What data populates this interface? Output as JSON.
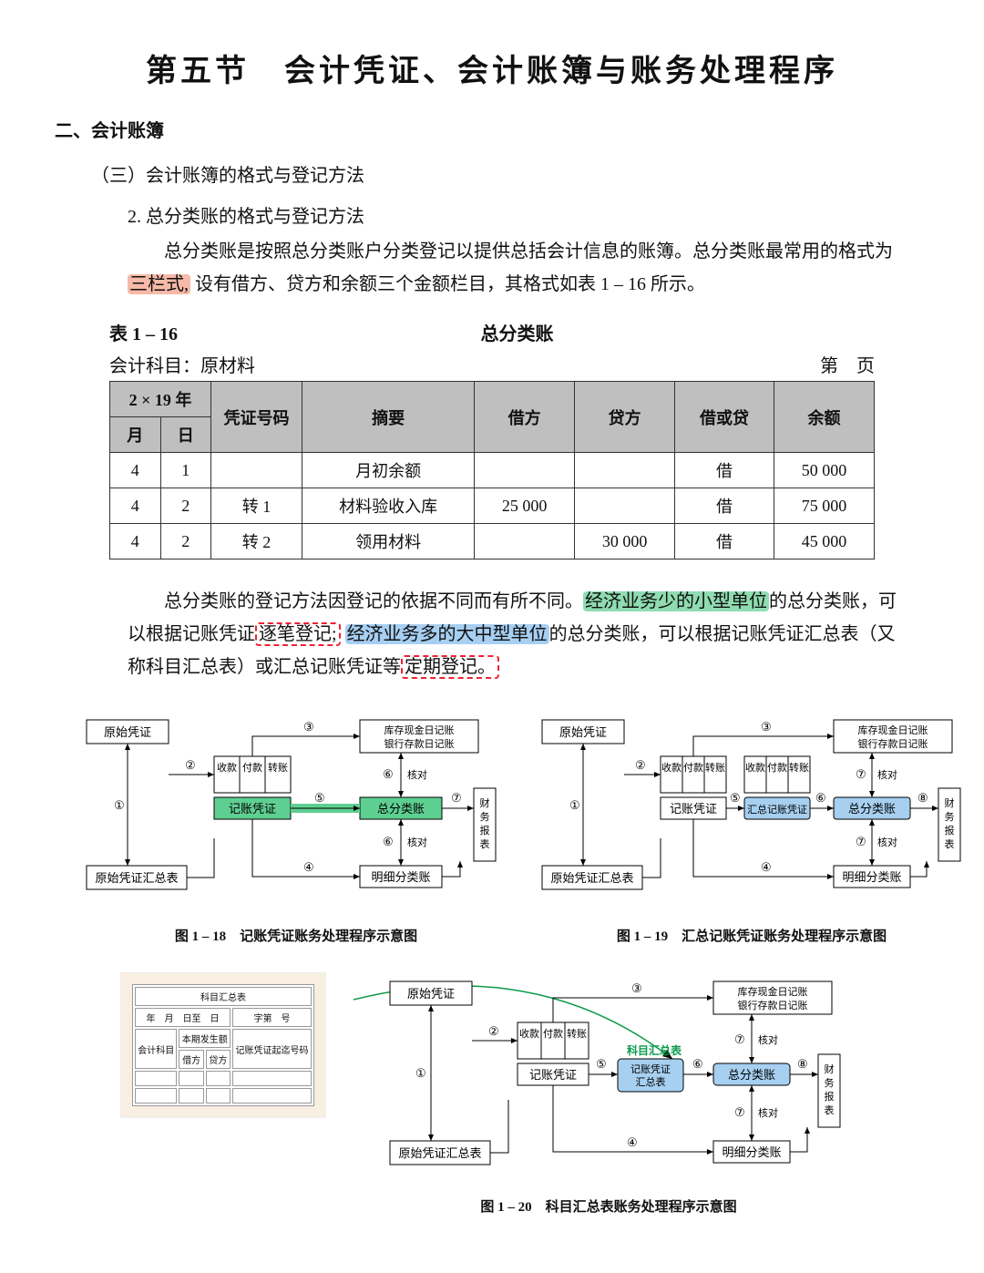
{
  "title": "第五节　会计凭证、会计账簿与账务处理程序",
  "section2": "二、会计账簿",
  "section3": "（三）会计账簿的格式与登记方法",
  "section4": "2. 总分类账的格式与登记方法",
  "para1": {
    "pre": "总分类账是按照总分类账户分类登记以提供总括会计信息的账簿。总分类账最常用的格式为",
    "hl": "三栏式,",
    "post": " 设有借方、贷方和余额三个金额栏目，其格式如表 1 – 16 所示。"
  },
  "tableCaption": {
    "left": "表 1 – 16",
    "center": "总分类账"
  },
  "subjectLine": {
    "left": "会计科目：原材料",
    "right": "第　页"
  },
  "ledger": {
    "yearHeader": "2 × 19 年",
    "cols": {
      "month": "月",
      "day": "日",
      "voucher": "凭证号码",
      "summary": "摘要",
      "debit": "借方",
      "credit": "贷方",
      "dc": "借或贷",
      "balance": "余额"
    },
    "rows": [
      {
        "m": "4",
        "d": "1",
        "v": "",
        "s": "月初余额",
        "db": "",
        "cr": "",
        "dc": "借",
        "bal": "50 000"
      },
      {
        "m": "4",
        "d": "2",
        "v": "转 1",
        "s": "材料验收入库",
        "db": "25 000",
        "cr": "",
        "dc": "借",
        "bal": "75 000"
      },
      {
        "m": "4",
        "d": "2",
        "v": "转 2",
        "s": "领用材料",
        "db": "",
        "cr": "30 000",
        "dc": "借",
        "bal": "45 000"
      }
    ]
  },
  "para2": {
    "a": "总分类账的登记方法因登记的依据不同而有所不同。",
    "b": "经济业务少的小型单位",
    "c": "的总分类账，可以根据记账凭证",
    "d": "逐笔登记;",
    "e": "经济业务多的大中型单位",
    "f": "的总分类账，可以根据记账凭证汇总表（又称科目汇总表）或汇总记账凭证等",
    "g": "定期登记。"
  },
  "diagram": {
    "nodes": {
      "orig": "原始凭证",
      "origSum": "原始凭证汇总表",
      "recv": "收款",
      "pay": "付款",
      "tran": "转账",
      "voucher": "记账凭证",
      "voucherSum": "记账凭证\n汇总表",
      "sumVoucher": "汇总记账\n凭证",
      "sumVoucherLine": "汇总记账凭证",
      "cash": "库存现金日记账\n银行存款日记账",
      "general": "总分类账",
      "detail": "明细分类账",
      "report": "财务报表",
      "verify": "核对",
      "handNote": "科目汇总表"
    },
    "circled": [
      "①",
      "②",
      "③",
      "④",
      "⑤",
      "⑥",
      "⑦",
      "⑧"
    ],
    "captions": {
      "d1": "图 1 – 18　记账凭证账务处理程序示意图",
      "d2": "图 1 – 19　汇总记账凭证账务处理程序示意图",
      "d3": "图 1 – 20　科目汇总表账务处理程序示意图"
    }
  },
  "smallTable": {
    "title": "科目汇总表",
    "line2a": "年　月　日至　日",
    "line2b": "字第　号",
    "subject": "会计科目",
    "amtGroup": "本期发生额",
    "debit": "借方",
    "credit": "贷方",
    "vno": "记账凭证起迄号码"
  },
  "style": {
    "bg": "#ffffff",
    "text": "#111111",
    "tableHeaderBg": "#bfbfbf",
    "hlOrange": "#f7b9a8",
    "hlGreen": "#8fdcb0",
    "hlBlue": "#a7cff2",
    "dashRed": "#e02030",
    "nodeGreen": "#5fcf91",
    "nodeBlue": "#a6cff0",
    "titleFont": "KaiTi",
    "bodyFont": "SimSun",
    "titleSize": 34,
    "bodySize": 20
  }
}
